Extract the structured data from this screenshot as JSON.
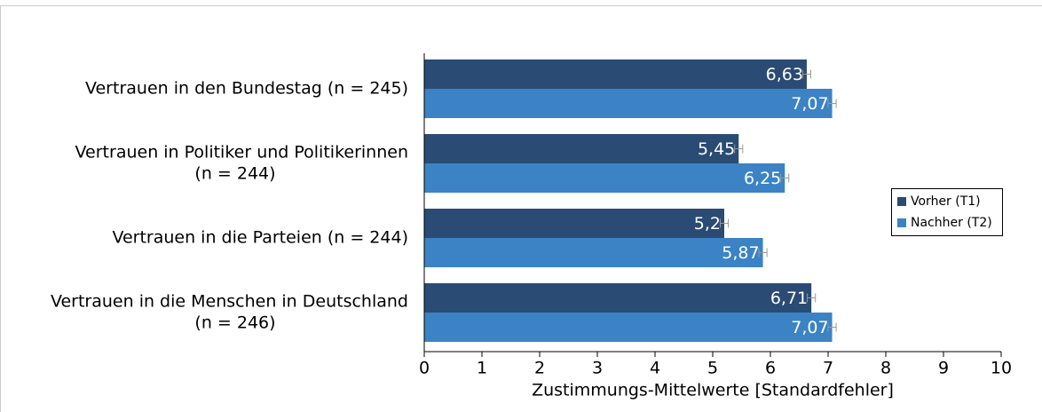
{
  "chart_data": {
    "type": "bar",
    "orientation": "horizontal",
    "categories": [
      [
        "Vertrauen in den Bundestag (n = 245)"
      ],
      [
        "Vertrauen in Politiker und Politikerinnen",
        "(n = 244)"
      ],
      [
        "Vertrauen in die Parteien (n = 244)"
      ],
      [
        "Vertrauen in die Menschen in Deutschland",
        "(n = 246)"
      ]
    ],
    "series": [
      {
        "name": "Vorher (T1)",
        "color": "#2a4b74",
        "values": [
          6.63,
          5.45,
          5.2,
          6.71
        ],
        "value_labels": [
          "6,63",
          "5,45",
          "5,2",
          "6,71"
        ],
        "errors": [
          0.07,
          0.07,
          0.07,
          0.07
        ]
      },
      {
        "name": "Nachher (T2)",
        "color": "#3b83c5",
        "values": [
          7.07,
          6.25,
          5.87,
          7.07
        ],
        "value_labels": [
          "7,07",
          "6,25",
          "5,87",
          "7,07"
        ],
        "errors": [
          0.07,
          0.07,
          0.07,
          0.07
        ]
      }
    ],
    "xlabel": "Zustimmungs-Mittelwerte [Standardfehler]",
    "xlim": [
      0,
      10
    ],
    "xticks": [
      0,
      1,
      2,
      3,
      4,
      5,
      6,
      7,
      8,
      9,
      10
    ],
    "legend": "right"
  }
}
